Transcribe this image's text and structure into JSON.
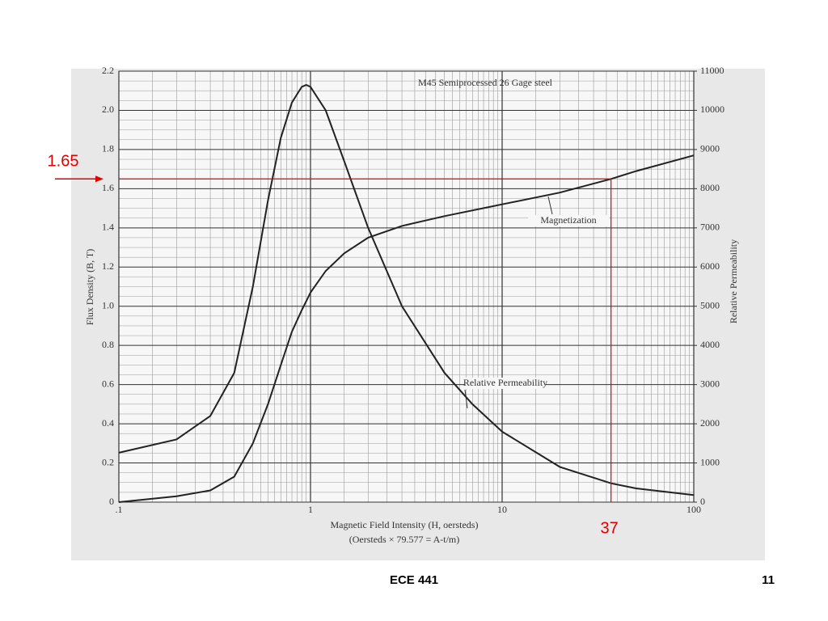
{
  "chart_data": {
    "type": "line",
    "title": "M45 Semiprocessed 26 Gage steel",
    "x_label": "Magnetic Field Intensity (H, oersteds)",
    "x_label_note": "(Oersteds × 79.577 = A-t/m)",
    "y_label": "Flux Density (B, T)",
    "y2_label": "Relative Permeability",
    "xscale": "log",
    "grid": true,
    "xlim": [
      0.1,
      100
    ],
    "xticks": [
      {
        "value": 0.1,
        "label": ".1"
      },
      1,
      10,
      100
    ],
    "ylim": [
      0,
      2.2
    ],
    "yticks": [
      0,
      0.2,
      0.4,
      0.6,
      0.8,
      {
        "value": 1,
        "label": "1.0"
      },
      1.2,
      1.4,
      1.6,
      1.8,
      {
        "value": 2,
        "label": "2.0"
      },
      2.2
    ],
    "y2lim": [
      0,
      11000
    ],
    "y2ticks": [
      0,
      1000,
      2000,
      3000,
      4000,
      5000,
      6000,
      7000,
      8000,
      9000,
      10000,
      11000
    ],
    "series": [
      {
        "name": "Magnetization",
        "color": "#222222",
        "x": [
          0.1,
          0.2,
          0.3,
          0.4,
          0.5,
          0.6,
          0.7,
          0.8,
          0.9,
          1,
          1.2,
          1.5,
          2,
          3,
          5,
          10,
          20,
          37,
          50,
          100
        ],
        "values": [
          0,
          0.03,
          0.06,
          0.13,
          0.3,
          0.5,
          0.7,
          0.87,
          0.98,
          1.07,
          1.18,
          1.27,
          1.35,
          1.41,
          1.46,
          1.52,
          1.58,
          1.65,
          1.69,
          1.77
        ]
      },
      {
        "name": "Relative Permeability",
        "color": "#222222",
        "axis": "y2",
        "x": [
          0.1,
          0.2,
          0.3,
          0.4,
          0.5,
          0.6,
          0.7,
          0.8,
          0.9,
          0.95,
          1,
          1.2,
          1.5,
          2,
          3,
          5,
          7,
          10,
          20,
          37,
          50,
          100
        ],
        "values": [
          1260,
          1600,
          2200,
          3300,
          5500,
          7700,
          9300,
          10200,
          10600,
          10650,
          10600,
          10000,
          8700,
          7000,
          5000,
          3300,
          2500,
          1800,
          900,
          480,
          350,
          180
        ]
      }
    ],
    "reference_lines": {
      "y": 1.65,
      "x": 37,
      "color": "#e00000"
    }
  },
  "footer": {
    "course": "ECE 441",
    "page": "11"
  }
}
